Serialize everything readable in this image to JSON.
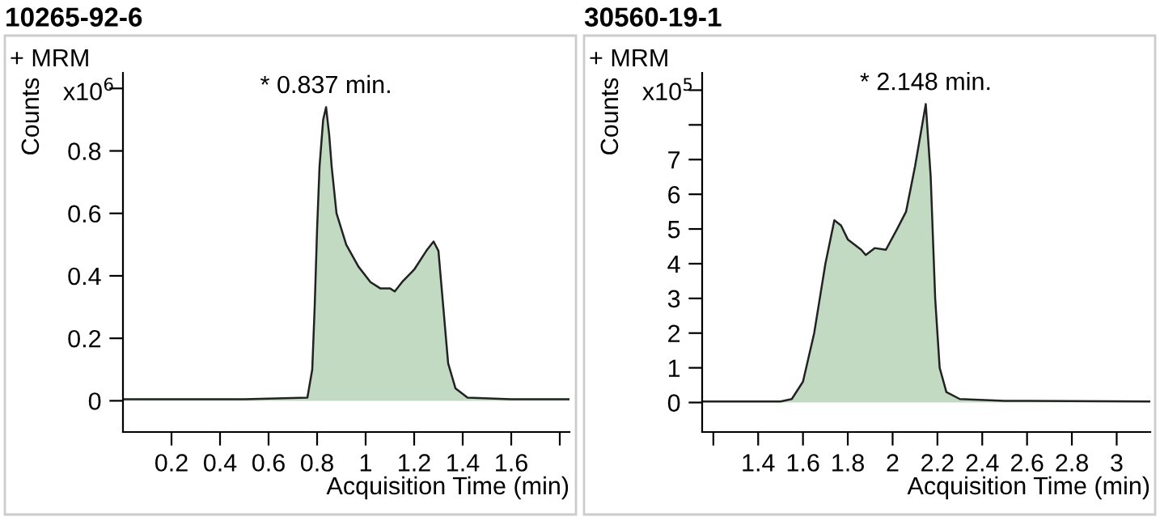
{
  "chart_data": [
    {
      "type": "area",
      "title": "10265-92-6",
      "xlabel": "Acquisition Time (min)",
      "ylabel": "Counts",
      "annotations": [
        "+ MRM",
        "x10$^{6}$",
        {
          "text": "* 0.837 min.",
          "x": 0.837,
          "y": 0.94
        }
      ],
      "xlim": [
        0,
        1.84
      ],
      "xticks": [
        0.2,
        0.4,
        0.6,
        0.8,
        1,
        1.2,
        1.4,
        1.6,
        {
          "value": 1.8,
          "label": null
        }
      ],
      "ylim": [
        -0.1,
        1.05
      ],
      "yticks": [
        0,
        0.2,
        0.4,
        0.6,
        0.8,
        {
          "value": 1.0,
          "label": null
        }
      ],
      "grid": false,
      "series": [
        {
          "color": "#c3dac2",
          "x": [
            0,
            0.5,
            0.76,
            0.78,
            0.79,
            0.8,
            0.81,
            0.825,
            0.837,
            0.85,
            0.86,
            0.88,
            0.92,
            0.97,
            1.02,
            1.06,
            1.1,
            1.12,
            1.15,
            1.2,
            1.25,
            1.28,
            1.3,
            1.32,
            1.34,
            1.37,
            1.42,
            1.6,
            1.84
          ],
          "values": [
            0.005,
            0.005,
            0.01,
            0.1,
            0.3,
            0.55,
            0.75,
            0.9,
            0.94,
            0.85,
            0.75,
            0.6,
            0.5,
            0.43,
            0.38,
            0.36,
            0.36,
            0.35,
            0.38,
            0.42,
            0.48,
            0.51,
            0.48,
            0.3,
            0.12,
            0.04,
            0.01,
            0.005,
            0.005
          ]
        }
      ]
    },
    {
      "type": "area",
      "title": "30560-19-1",
      "xlabel": "Acquisition Time (min)",
      "ylabel": "Counts",
      "annotations": [
        "+ MRM",
        "x10$^{5}$",
        {
          "text": "* 2.148 min.",
          "x": 2.148,
          "y": 8.6
        }
      ],
      "xlim": [
        1.15,
        3.15
      ],
      "xticks": [
        {
          "value": 1.2,
          "label": null
        },
        1.4,
        1.6,
        1.8,
        2,
        2.2,
        2.4,
        2.6,
        2.8,
        3
      ],
      "ylim": [
        -0.85,
        9.5
      ],
      "yticks": [
        0,
        1,
        2,
        3,
        4,
        5,
        6,
        7,
        {
          "value": 8,
          "label": null
        },
        {
          "value": 9,
          "label": null
        }
      ],
      "grid": false,
      "series": [
        {
          "color": "#c3dac2",
          "x": [
            1.15,
            1.5,
            1.55,
            1.6,
            1.65,
            1.7,
            1.74,
            1.77,
            1.8,
            1.86,
            1.88,
            1.92,
            1.97,
            2.02,
            2.06,
            2.1,
            2.148,
            2.17,
            2.19,
            2.21,
            2.24,
            2.3,
            2.5,
            3.15
          ],
          "values": [
            0.03,
            0.03,
            0.1,
            0.6,
            2,
            4,
            5.25,
            5.1,
            4.7,
            4.4,
            4.25,
            4.45,
            4.4,
            5,
            5.5,
            6.8,
            8.6,
            6.5,
            3,
            1,
            0.3,
            0.1,
            0.05,
            0.03
          ]
        }
      ]
    }
  ]
}
